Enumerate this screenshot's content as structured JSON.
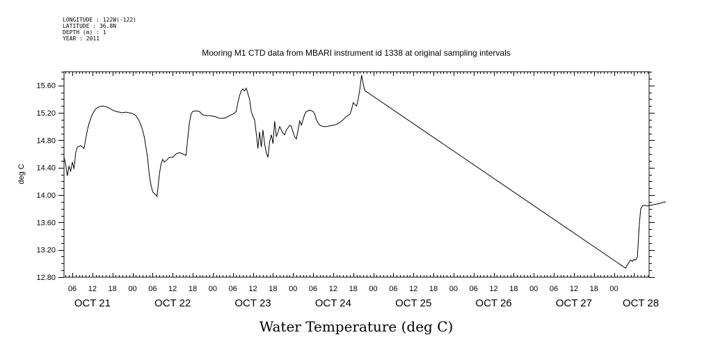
{
  "chart_data": {
    "type": "line",
    "title": "Mooring M1 CTD data from MBARI instrument id 1338 at original sampling intervals",
    "header_lines": [
      "LONGITUDE : 122W(-122)",
      "LATITUDE : 36.8N",
      "DEPTH (m) : 1",
      "YEAR : 2011"
    ],
    "xlabel": "Water Temperature (deg C)",
    "ylabel": "deg C",
    "ylim": [
      12.8,
      15.8
    ],
    "y_ticks": [
      "12.80",
      "13.20",
      "13.60",
      "14.00",
      "14.40",
      "14.80",
      "15.20",
      "15.60"
    ],
    "x_unit": "hours since OCT 21 00:00",
    "xlim": [
      3.5,
      178.5
    ],
    "x_hour_ticks": [
      "06",
      "12",
      "18",
      "00",
      "06",
      "12",
      "18",
      "00",
      "06",
      "12",
      "18",
      "00",
      "06",
      "12",
      "18",
      "00",
      "06",
      "12",
      "18",
      "00",
      "06",
      "12",
      "18",
      "00",
      "06",
      "12",
      "18",
      "00"
    ],
    "x_day_labels": [
      "OCT 21",
      "OCT 22",
      "OCT 23",
      "OCT 24",
      "OCT 25",
      "OCT 26",
      "OCT 27",
      "OCT 28"
    ],
    "grid": false,
    "series": [
      {
        "points": [
          [
            3.5,
            14.55
          ],
          [
            4.0,
            14.45
          ],
          [
            4.5,
            14.28
          ],
          [
            5.0,
            14.42
          ],
          [
            5.5,
            14.35
          ],
          [
            6.0,
            14.48
          ],
          [
            6.5,
            14.38
          ],
          [
            7.0,
            14.62
          ],
          [
            7.5,
            14.7
          ],
          [
            8.5,
            14.72
          ],
          [
            9.5,
            14.68
          ],
          [
            10.0,
            14.82
          ],
          [
            10.5,
            14.95
          ],
          [
            11.0,
            15.05
          ],
          [
            12.0,
            15.18
          ],
          [
            12.5,
            15.22
          ],
          [
            13.0,
            15.26
          ],
          [
            14.0,
            15.29
          ],
          [
            15.0,
            15.3
          ],
          [
            16.0,
            15.29
          ],
          [
            17.0,
            15.27
          ],
          [
            18.0,
            15.24
          ],
          [
            19.0,
            15.22
          ],
          [
            20.0,
            15.21
          ],
          [
            21.0,
            15.2
          ],
          [
            22.0,
            15.21
          ],
          [
            23.0,
            15.2
          ],
          [
            24.0,
            15.19
          ],
          [
            25.0,
            15.16
          ],
          [
            25.5,
            15.12
          ],
          [
            26.0,
            15.08
          ],
          [
            26.5,
            15.02
          ],
          [
            27.0,
            14.95
          ],
          [
            27.5,
            14.85
          ],
          [
            28.0,
            14.7
          ],
          [
            28.5,
            14.55
          ],
          [
            29.0,
            14.3
          ],
          [
            29.5,
            14.15
          ],
          [
            30.0,
            14.05
          ],
          [
            30.5,
            14.02
          ],
          [
            31.0,
            14.0
          ],
          [
            31.3,
            13.98
          ],
          [
            31.6,
            14.1
          ],
          [
            32.0,
            14.3
          ],
          [
            32.5,
            14.45
          ],
          [
            33.0,
            14.52
          ],
          [
            33.5,
            14.48
          ],
          [
            34.0,
            14.5
          ],
          [
            35.0,
            14.55
          ],
          [
            35.5,
            14.55
          ],
          [
            36.0,
            14.55
          ],
          [
            37.0,
            14.6
          ],
          [
            38.0,
            14.62
          ],
          [
            39.0,
            14.6
          ],
          [
            40.0,
            14.58
          ],
          [
            40.5,
            14.82
          ],
          [
            41.0,
            15.05
          ],
          [
            41.5,
            15.18
          ],
          [
            42.0,
            15.22
          ],
          [
            43.0,
            15.23
          ],
          [
            44.0,
            15.22
          ],
          [
            45.0,
            15.17
          ],
          [
            46.0,
            15.16
          ],
          [
            47.0,
            15.16
          ],
          [
            48.0,
            15.15
          ],
          [
            49.0,
            15.14
          ],
          [
            50.0,
            15.12
          ],
          [
            51.0,
            15.12
          ],
          [
            52.0,
            15.13
          ],
          [
            53.0,
            15.16
          ],
          [
            54.0,
            15.18
          ],
          [
            55.0,
            15.22
          ],
          [
            55.5,
            15.35
          ],
          [
            56.0,
            15.45
          ],
          [
            56.5,
            15.52
          ],
          [
            57.0,
            15.55
          ],
          [
            57.5,
            15.52
          ],
          [
            58.0,
            15.56
          ],
          [
            58.5,
            15.48
          ],
          [
            59.0,
            15.4
          ],
          [
            59.5,
            15.22
          ],
          [
            60.0,
            15.15
          ],
          [
            60.5,
            15.1
          ],
          [
            61.0,
            14.9
          ],
          [
            61.5,
            14.68
          ],
          [
            62.0,
            14.92
          ],
          [
            62.5,
            14.7
          ],
          [
            63.0,
            14.95
          ],
          [
            63.5,
            14.75
          ],
          [
            64.0,
            14.62
          ],
          [
            64.5,
            14.55
          ],
          [
            65.0,
            14.78
          ],
          [
            65.5,
            14.88
          ],
          [
            66.0,
            14.75
          ],
          [
            66.5,
            15.08
          ],
          [
            67.0,
            14.85
          ],
          [
            67.5,
            14.92
          ],
          [
            68.0,
            15.0
          ],
          [
            68.5,
            14.95
          ],
          [
            69.0,
            14.9
          ],
          [
            69.5,
            14.88
          ],
          [
            70.0,
            14.95
          ],
          [
            70.5,
            14.98
          ],
          [
            71.0,
            15.02
          ],
          [
            71.5,
            15.0
          ],
          [
            72.0,
            14.92
          ],
          [
            72.5,
            14.85
          ],
          [
            73.0,
            14.82
          ],
          [
            73.5,
            14.95
          ],
          [
            74.0,
            15.08
          ],
          [
            74.5,
            15.02
          ],
          [
            75.0,
            15.1
          ],
          [
            75.5,
            15.18
          ],
          [
            76.0,
            15.22
          ],
          [
            77.0,
            15.24
          ],
          [
            78.0,
            15.22
          ],
          [
            78.5,
            15.18
          ],
          [
            79.0,
            15.1
          ],
          [
            79.5,
            15.05
          ],
          [
            80.0,
            15.02
          ],
          [
            81.0,
            15.0
          ],
          [
            82.0,
            15.0
          ],
          [
            83.0,
            15.01
          ],
          [
            84.0,
            15.02
          ],
          [
            85.0,
            15.03
          ],
          [
            86.0,
            15.06
          ],
          [
            87.0,
            15.1
          ],
          [
            88.0,
            15.15
          ],
          [
            89.0,
            15.18
          ],
          [
            89.5,
            15.25
          ],
          [
            90.0,
            15.35
          ],
          [
            90.5,
            15.32
          ],
          [
            91.0,
            15.3
          ],
          [
            91.5,
            15.4
          ],
          [
            92.0,
            15.55
          ],
          [
            92.5,
            15.75
          ],
          [
            93.0,
            15.62
          ],
          [
            93.3,
            15.55
          ],
          [
            93.6,
            15.52
          ],
          [
            171.5,
            12.93
          ],
          [
            172.0,
            12.98
          ],
          [
            172.5,
            13.02
          ],
          [
            173.0,
            13.05
          ],
          [
            173.5,
            13.03
          ],
          [
            174.0,
            13.06
          ],
          [
            174.5,
            13.05
          ],
          [
            175.0,
            13.1
          ],
          [
            175.3,
            13.35
          ],
          [
            175.6,
            13.6
          ],
          [
            176.0,
            13.8
          ],
          [
            176.5,
            13.84
          ],
          [
            177.0,
            13.85
          ],
          [
            178.0,
            13.84
          ],
          [
            179.0,
            13.85
          ],
          [
            180.0,
            13.86
          ],
          [
            181.0,
            13.87
          ],
          [
            182.0,
            13.88
          ],
          [
            183.0,
            13.9
          ],
          [
            183.5,
            13.89
          ]
        ]
      }
    ]
  }
}
